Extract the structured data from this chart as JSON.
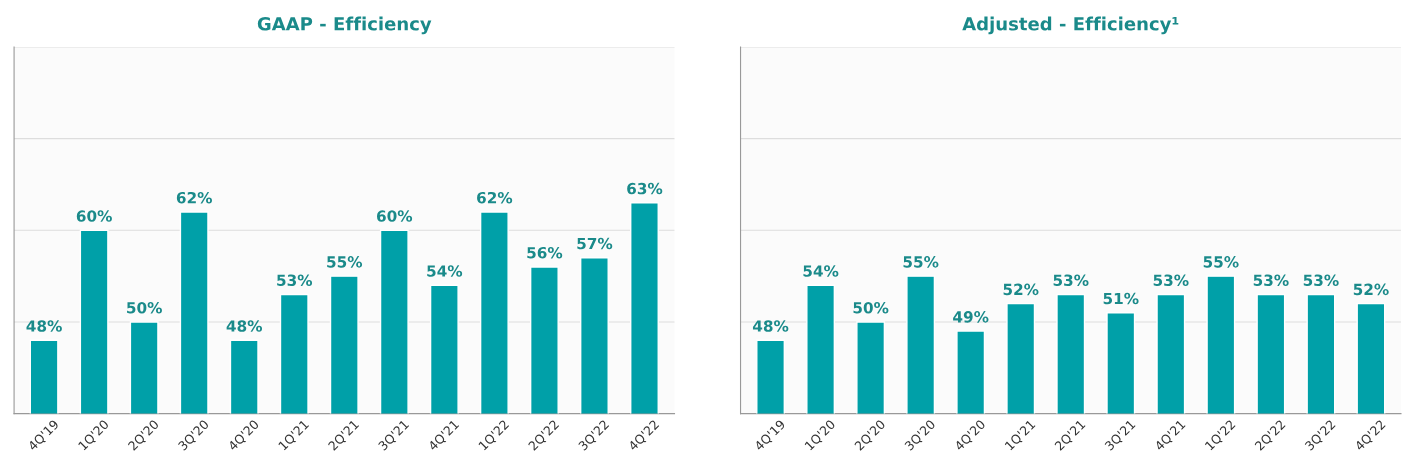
{
  "chart_data": [
    {
      "type": "bar",
      "title": "GAAP - Efficiency",
      "categories": [
        "4Q'19",
        "1Q'20",
        "2Q'20",
        "3Q'20",
        "4Q'20",
        "1Q'21",
        "2Q'21",
        "3Q'21",
        "4Q'21",
        "1Q'22",
        "2Q'22",
        "3Q'22",
        "4Q'22"
      ],
      "values": [
        48,
        60,
        50,
        62,
        48,
        53,
        55,
        60,
        54,
        62,
        56,
        57,
        63
      ],
      "value_labels": [
        "48%",
        "60%",
        "50%",
        "62%",
        "48%",
        "53%",
        "55%",
        "60%",
        "54%",
        "62%",
        "56%",
        "57%",
        "63%"
      ],
      "color": "#00a0a8",
      "ylim": [
        40,
        80
      ],
      "yticks": [
        {
          "value": 50,
          "label": null
        },
        {
          "value": 60,
          "label": null
        },
        {
          "value": 70,
          "label": null
        },
        {
          "value": 80,
          "label": null
        }
      ],
      "grid": "y",
      "tick_labels": "x"
    },
    {
      "type": "bar",
      "title": "Adjusted - Efficiency¹",
      "categories": [
        "4Q'19",
        "1Q'20",
        "2Q'20",
        "3Q'20",
        "4Q'20",
        "1Q'21",
        "2Q'21",
        "3Q'21",
        "4Q'21",
        "1Q'22",
        "2Q'22",
        "3Q'22",
        "4Q'22"
      ],
      "values": [
        48,
        54,
        50,
        55,
        49,
        52,
        53,
        51,
        53,
        55,
        53,
        53,
        52
      ],
      "value_labels": [
        "48%",
        "54%",
        "50%",
        "55%",
        "49%",
        "52%",
        "53%",
        "51%",
        "53%",
        "55%",
        "53%",
        "53%",
        "52%"
      ],
      "color": "#00a0a8",
      "ylim": [
        40,
        80
      ],
      "yticks": [
        {
          "value": 50,
          "label": null
        },
        {
          "value": 60,
          "label": null
        },
        {
          "value": 70,
          "label": null
        },
        {
          "value": 80,
          "label": null
        }
      ],
      "grid": "y",
      "tick_labels": "x"
    }
  ]
}
